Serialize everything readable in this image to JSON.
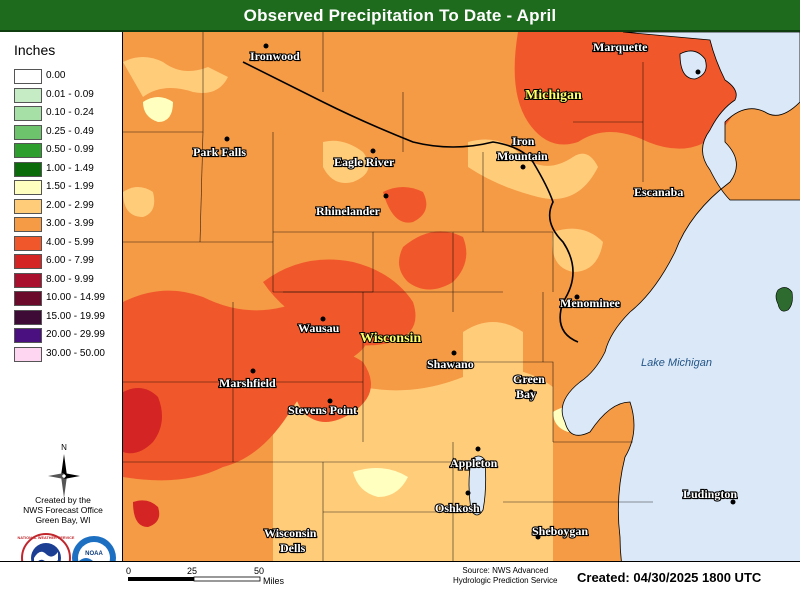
{
  "title": "Observed Precipitation To Date - April",
  "legend": {
    "title": "Inches",
    "items": [
      {
        "label": "0.00",
        "color": "#ffffff"
      },
      {
        "label": "0.01 - 0.09",
        "color": "#c6ecc6"
      },
      {
        "label": "0.10 - 0.24",
        "color": "#a6e0a6"
      },
      {
        "label": "0.25 - 0.49",
        "color": "#6cc36c"
      },
      {
        "label": "0.50 - 0.99",
        "color": "#2e9e2e"
      },
      {
        "label": "1.00 - 1.49",
        "color": "#0b6b0b"
      },
      {
        "label": "1.50 - 1.99",
        "color": "#ffffc0"
      },
      {
        "label": "2.00 - 2.99",
        "color": "#ffcc7a"
      },
      {
        "label": "3.00 - 3.99",
        "color": "#f59a45"
      },
      {
        "label": "4.00 - 5.99",
        "color": "#f0582b"
      },
      {
        "label": "6.00 - 7.99",
        "color": "#d42424"
      },
      {
        "label": "8.00 - 9.99",
        "color": "#a8102e"
      },
      {
        "label": "10.00 - 14.99",
        "color": "#6b0a2a"
      },
      {
        "label": "15.00 - 19.99",
        "color": "#3d0b35"
      },
      {
        "label": "20.00 - 29.99",
        "color": "#4b1080"
      },
      {
        "label": "30.00 - 50.00",
        "color": "#ffd6f2"
      }
    ]
  },
  "credits": {
    "north": "N",
    "line1": "Created by the",
    "line2": "NWS Forecast Office",
    "line3": "Green Bay, WI",
    "nws_logo_text": "NATIONAL WEATHER SERVICE",
    "noaa_logo_text": "NOAA"
  },
  "map": {
    "state_labels": {
      "michigan": "Michigan",
      "wisconsin": "Wisconsin"
    },
    "lake_label": "Lake Michigan",
    "cities": {
      "ironwood": "Ironwood",
      "marquette": "Marquette",
      "park_falls": "Park Falls",
      "eagle_river": "Eagle River",
      "iron": "Iron",
      "mountain": "Mountain",
      "escanaba": "Escanaba",
      "rhinelander": "Rhinelander",
      "menominee": "Menominee",
      "wausau": "Wausau",
      "shawano": "Shawano",
      "marshfield": "Marshfield",
      "green": "Green",
      "bay": "Bay",
      "stevens_point": "Stevens Point",
      "appleton": "Appleton",
      "oshkosh": "Oshkosh",
      "ludington": "Ludington",
      "wisconsin": "Wisconsin",
      "dells": "Dells",
      "sheboygan": "Sheboygan"
    },
    "colors": {
      "lake": "#dbe8f7",
      "base": "#f59a45"
    }
  },
  "scale": {
    "t0": "0",
    "t25": "25",
    "t50": "50",
    "unit": "Miles"
  },
  "source": {
    "line1": "Source: NWS Advanced",
    "line2": "Hydrologic Prediction Service"
  },
  "created": "Created: 04/30/2025 1800 UTC"
}
